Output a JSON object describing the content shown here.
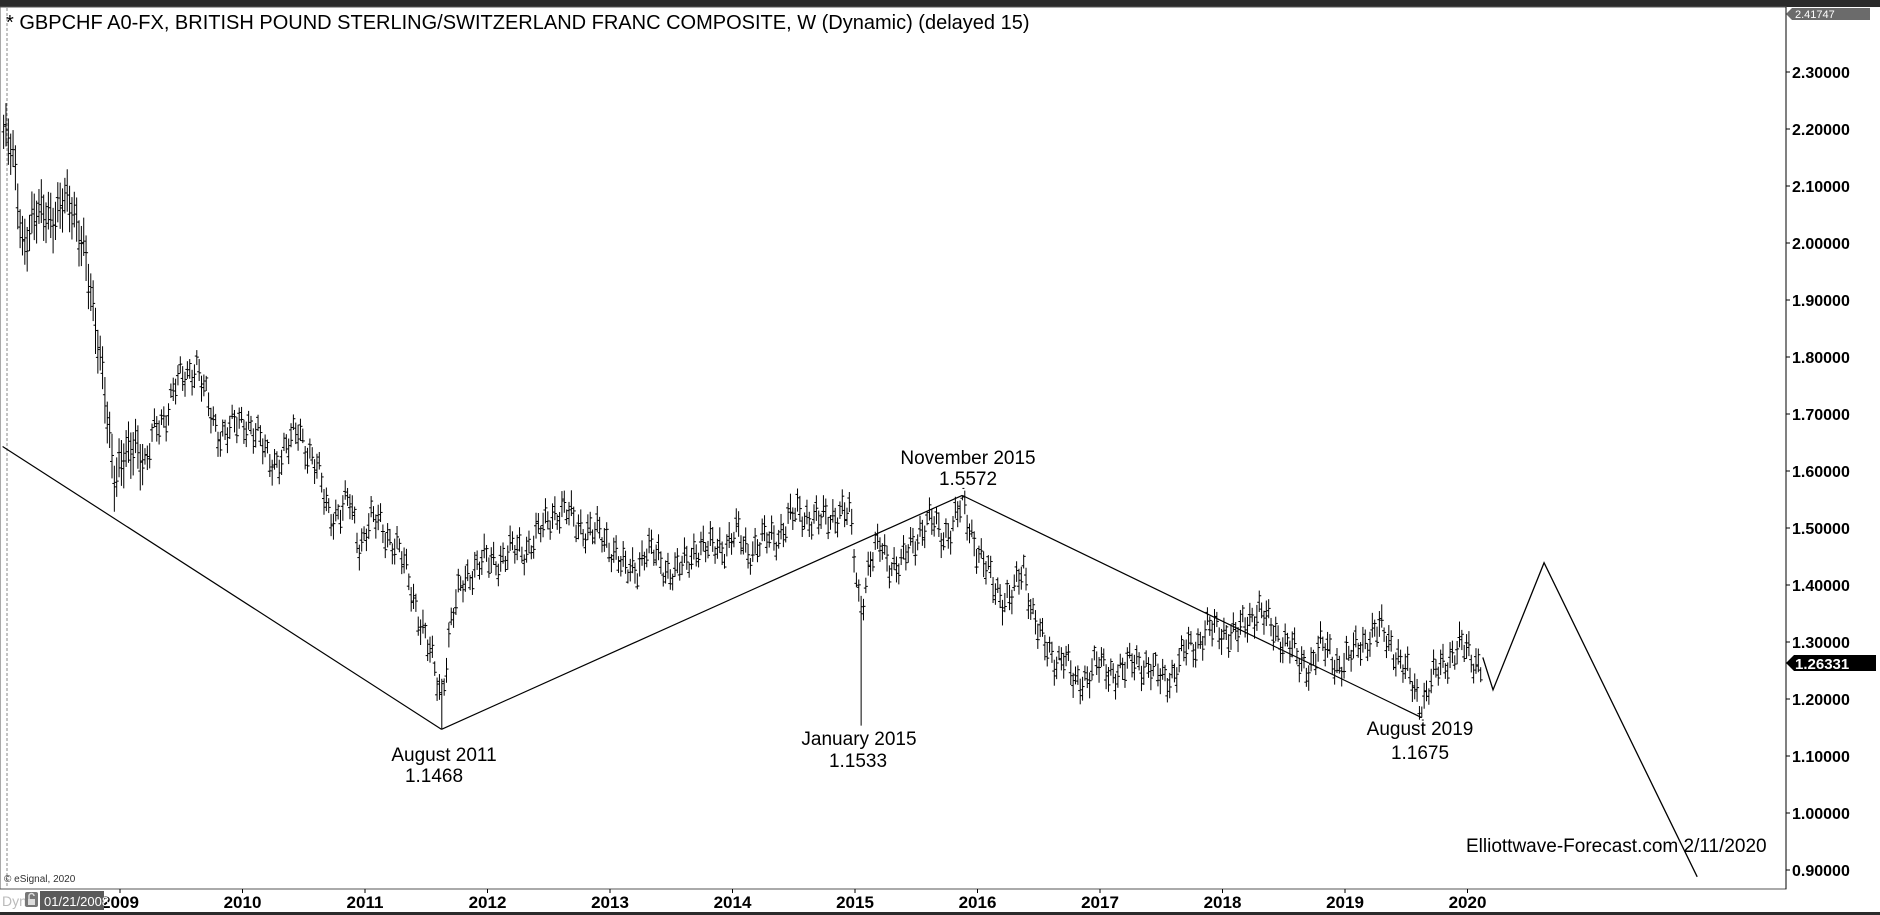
{
  "title": "* GBPCHF A0-FX, BRITISH POUND STERLING/SWITZERLAND FRANC COMPOSITE, W (Dynamic) (delayed 15)",
  "copyright": "© eSignal, 2020",
  "watermark": "Elliottwave-Forecast.com 2/11/2020",
  "footer": {
    "dyn_label": "Dyn",
    "start_date": "01/21/2008",
    "lock_icon": "lock-icon"
  },
  "price_labels": {
    "top": "2.41747",
    "last": "1.26331"
  },
  "colors": {
    "bars": "#000000",
    "last_price_box": "#000000",
    "top_price_box": "#6b6b6b",
    "date_box": "#5a5a5a"
  },
  "annotations": [
    {
      "label": "August 2011",
      "value": "1.1468"
    },
    {
      "label": "January 2015",
      "value": "1.1533"
    },
    {
      "label": "November 2015",
      "value": "1.5572"
    },
    {
      "label": "August 2019",
      "value": "1.1675"
    }
  ],
  "chart_data": {
    "type": "bar",
    "bar_style": "OHLC weekly",
    "y_ticks": [
      "2.30000",
      "2.20000",
      "2.10000",
      "2.00000",
      "1.90000",
      "1.80000",
      "1.70000",
      "1.60000",
      "1.50000",
      "1.40000",
      "1.30000",
      "1.20000",
      "1.10000",
      "1.00000",
      "0.90000"
    ],
    "x_ticks": [
      "2009",
      "2010",
      "2011",
      "2012",
      "2013",
      "2014",
      "2015",
      "2016",
      "2017",
      "2018",
      "2019",
      "2020"
    ],
    "ylim": [
      0.88,
      2.41747
    ],
    "grid": false,
    "approx_monthly_close": [
      [
        "2008-01",
        2.2
      ],
      [
        "2008-02",
        2.15
      ],
      [
        "2008-03",
        2.0
      ],
      [
        "2008-04",
        2.04
      ],
      [
        "2008-05",
        2.05
      ],
      [
        "2008-06",
        2.05
      ],
      [
        "2008-07",
        2.07
      ],
      [
        "2008-08",
        2.05
      ],
      [
        "2008-09",
        2.0
      ],
      [
        "2008-10",
        1.85
      ],
      [
        "2008-11",
        1.75
      ],
      [
        "2008-12",
        1.58
      ],
      [
        "2009-01",
        1.62
      ],
      [
        "2009-02",
        1.66
      ],
      [
        "2009-03",
        1.6
      ],
      [
        "2009-04",
        1.68
      ],
      [
        "2009-05",
        1.7
      ],
      [
        "2009-06",
        1.75
      ],
      [
        "2009-07",
        1.77
      ],
      [
        "2009-08",
        1.79
      ],
      [
        "2009-09",
        1.72
      ],
      [
        "2009-10",
        1.67
      ],
      [
        "2009-11",
        1.67
      ],
      [
        "2009-12",
        1.68
      ],
      [
        "2010-01",
        1.69
      ],
      [
        "2010-02",
        1.66
      ],
      [
        "2010-03",
        1.62
      ],
      [
        "2010-04",
        1.62
      ],
      [
        "2010-05",
        1.64
      ],
      [
        "2010-06",
        1.68
      ],
      [
        "2010-07",
        1.63
      ],
      [
        "2010-08",
        1.59
      ],
      [
        "2010-09",
        1.53
      ],
      [
        "2010-10",
        1.52
      ],
      [
        "2010-11",
        1.55
      ],
      [
        "2010-12",
        1.47
      ],
      [
        "2011-01",
        1.51
      ],
      [
        "2011-02",
        1.51
      ],
      [
        "2011-03",
        1.48
      ],
      [
        "2011-04",
        1.45
      ],
      [
        "2011-05",
        1.4
      ],
      [
        "2011-06",
        1.33
      ],
      [
        "2011-07",
        1.27
      ],
      [
        "2011-08",
        1.21
      ],
      [
        "2011-09",
        1.34
      ],
      [
        "2011-10",
        1.4
      ],
      [
        "2011-11",
        1.43
      ],
      [
        "2011-12",
        1.44
      ],
      [
        "2012-01",
        1.44
      ],
      [
        "2012-02",
        1.45
      ],
      [
        "2012-03",
        1.46
      ],
      [
        "2012-04",
        1.46
      ],
      [
        "2012-05",
        1.48
      ],
      [
        "2012-06",
        1.5
      ],
      [
        "2012-07",
        1.53
      ],
      [
        "2012-08",
        1.53
      ],
      [
        "2012-09",
        1.51
      ],
      [
        "2012-10",
        1.5
      ],
      [
        "2012-11",
        1.49
      ],
      [
        "2012-12",
        1.48
      ],
      [
        "2013-01",
        1.46
      ],
      [
        "2013-02",
        1.42
      ],
      [
        "2013-03",
        1.43
      ],
      [
        "2013-04",
        1.46
      ],
      [
        "2013-05",
        1.45
      ],
      [
        "2013-06",
        1.43
      ],
      [
        "2013-07",
        1.42
      ],
      [
        "2013-08",
        1.44
      ],
      [
        "2013-09",
        1.47
      ],
      [
        "2013-10",
        1.46
      ],
      [
        "2013-11",
        1.47
      ],
      [
        "2013-12",
        1.47
      ],
      [
        "2014-01",
        1.49
      ],
      [
        "2014-02",
        1.46
      ],
      [
        "2014-03",
        1.47
      ],
      [
        "2014-04",
        1.48
      ],
      [
        "2014-05",
        1.49
      ],
      [
        "2014-06",
        1.51
      ],
      [
        "2014-07",
        1.53
      ],
      [
        "2014-08",
        1.52
      ],
      [
        "2014-09",
        1.51
      ],
      [
        "2014-10",
        1.52
      ],
      [
        "2014-11",
        1.53
      ],
      [
        "2014-12",
        1.52
      ],
      [
        "2015-01",
        1.36
      ],
      [
        "2015-02",
        1.44
      ],
      [
        "2015-03",
        1.47
      ],
      [
        "2015-04",
        1.44
      ],
      [
        "2015-05",
        1.43
      ],
      [
        "2015-06",
        1.47
      ],
      [
        "2015-07",
        1.5
      ],
      [
        "2015-08",
        1.51
      ],
      [
        "2015-09",
        1.49
      ],
      [
        "2015-10",
        1.5
      ],
      [
        "2015-11",
        1.54
      ],
      [
        "2015-12",
        1.49
      ],
      [
        "2016-01",
        1.44
      ],
      [
        "2016-02",
        1.4
      ],
      [
        "2016-03",
        1.38
      ],
      [
        "2016-04",
        1.38
      ],
      [
        "2016-05",
        1.43
      ],
      [
        "2016-06",
        1.35
      ],
      [
        "2016-07",
        1.29
      ],
      [
        "2016-08",
        1.27
      ],
      [
        "2016-09",
        1.28
      ],
      [
        "2016-10",
        1.22
      ],
      [
        "2016-11",
        1.24
      ],
      [
        "2016-12",
        1.26
      ],
      [
        "2017-01",
        1.25
      ],
      [
        "2017-02",
        1.25
      ],
      [
        "2017-03",
        1.25
      ],
      [
        "2017-04",
        1.27
      ],
      [
        "2017-05",
        1.26
      ],
      [
        "2017-06",
        1.24
      ],
      [
        "2017-07",
        1.24
      ],
      [
        "2017-08",
        1.25
      ],
      [
        "2017-09",
        1.29
      ],
      [
        "2017-10",
        1.3
      ],
      [
        "2017-11",
        1.32
      ],
      [
        "2017-12",
        1.32
      ],
      [
        "2018-01",
        1.32
      ],
      [
        "2018-02",
        1.31
      ],
      [
        "2018-03",
        1.34
      ],
      [
        "2018-04",
        1.36
      ],
      [
        "2018-05",
        1.33
      ],
      [
        "2018-06",
        1.31
      ],
      [
        "2018-07",
        1.3
      ],
      [
        "2018-08",
        1.26
      ],
      [
        "2018-09",
        1.26
      ],
      [
        "2018-10",
        1.29
      ],
      [
        "2018-11",
        1.28
      ],
      [
        "2018-12",
        1.26
      ],
      [
        "2019-01",
        1.27
      ],
      [
        "2019-02",
        1.3
      ],
      [
        "2019-03",
        1.31
      ],
      [
        "2019-04",
        1.32
      ],
      [
        "2019-05",
        1.3
      ],
      [
        "2019-06",
        1.26
      ],
      [
        "2019-07",
        1.23
      ],
      [
        "2019-08",
        1.19
      ],
      [
        "2019-09",
        1.23
      ],
      [
        "2019-10",
        1.26
      ],
      [
        "2019-11",
        1.28
      ],
      [
        "2019-12",
        1.29
      ],
      [
        "2020-01",
        1.27
      ],
      [
        "2020-02",
        1.263
      ]
    ],
    "extremes": [
      {
        "date": "2011-08",
        "low": 1.1468
      },
      {
        "date": "2015-01",
        "low": 1.1533
      },
      {
        "date": "2015-11",
        "high": 1.5572
      },
      {
        "date": "2019-08",
        "low": 1.1675
      }
    ],
    "trend_lines": [
      [
        [
          "2008-01",
          1.643
        ],
        [
          "2011-08",
          1.1468
        ]
      ],
      [
        [
          "2011-08",
          1.1468
        ],
        [
          "2015-11",
          1.5572
        ]
      ],
      [
        [
          "2015-11",
          1.5572
        ],
        [
          "2019-08",
          1.1675
        ]
      ]
    ],
    "projection_path": [
      [
        "2020-02",
        1.273
      ],
      [
        "2020-03",
        1.216
      ],
      [
        "2020-08",
        1.439
      ],
      [
        "2021-11",
        0.888
      ]
    ]
  }
}
